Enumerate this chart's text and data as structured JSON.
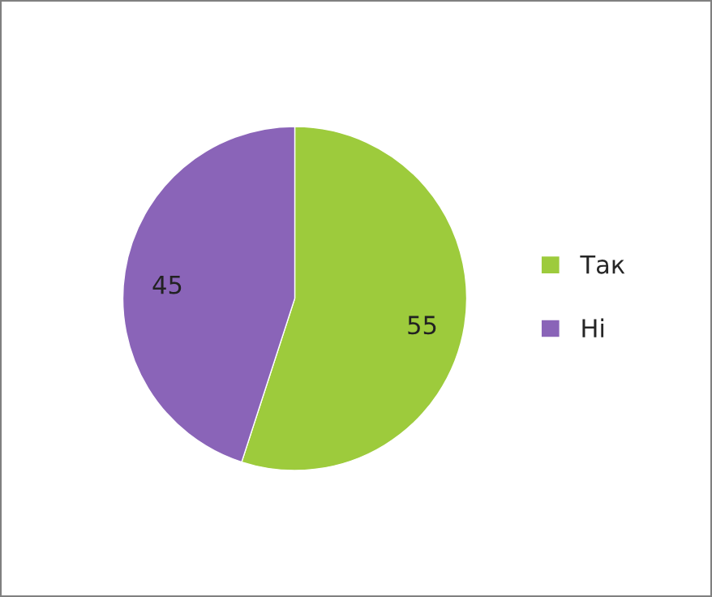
{
  "chart_data": {
    "type": "pie",
    "categories": [
      "Так",
      "Ні"
    ],
    "values": [
      55,
      45
    ],
    "colors": [
      "#9dcb3c",
      "#8a64b8"
    ],
    "data_labels": true,
    "legend": "right"
  }
}
